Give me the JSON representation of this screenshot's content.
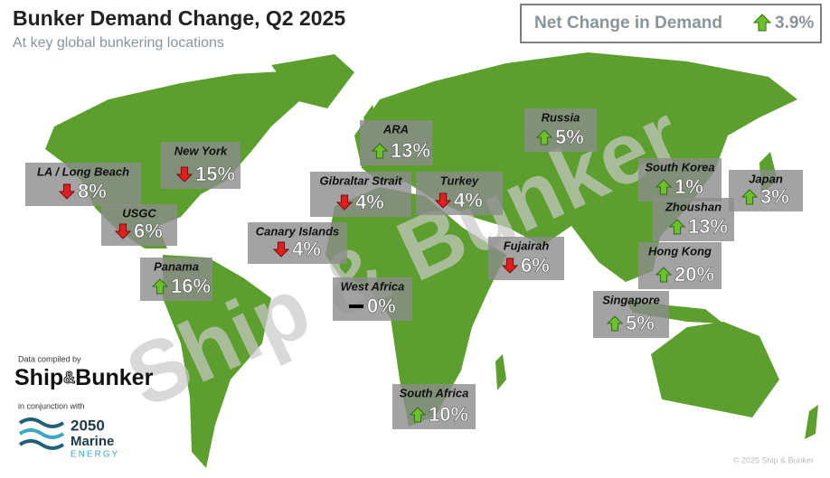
{
  "header": {
    "title": "Bunker Demand Change, Q2 2025",
    "subtitle": "At key global bunkering locations"
  },
  "net_change": {
    "label": "Net Change in Demand",
    "direction": "up",
    "value": "3.9%"
  },
  "watermark": "Ship & Bunker",
  "locations": [
    {
      "name": "LA / Long Beach",
      "direction": "down",
      "value": "8%"
    },
    {
      "name": "New York",
      "direction": "down",
      "value": "15%"
    },
    {
      "name": "USGC",
      "direction": "down",
      "value": "6%"
    },
    {
      "name": "Panama",
      "direction": "up",
      "value": "16%"
    },
    {
      "name": "Canary Islands",
      "direction": "down",
      "value": "4%"
    },
    {
      "name": "Gibraltar Strait",
      "direction": "down",
      "value": "4%"
    },
    {
      "name": "ARA",
      "direction": "up",
      "value": "13%"
    },
    {
      "name": "Turkey",
      "direction": "down",
      "value": "4%"
    },
    {
      "name": "West Africa",
      "direction": "flat",
      "value": "0%"
    },
    {
      "name": "Fujairah",
      "direction": "down",
      "value": "6%"
    },
    {
      "name": "Russia",
      "direction": "up",
      "value": "5%"
    },
    {
      "name": "South Korea",
      "direction": "up",
      "value": "1%"
    },
    {
      "name": "Japan",
      "direction": "up",
      "value": "3%"
    },
    {
      "name": "Zhoushan",
      "direction": "up",
      "value": "13%"
    },
    {
      "name": "Hong Kong",
      "direction": "up",
      "value": "20%"
    },
    {
      "name": "Singapore",
      "direction": "up",
      "value": "5%"
    },
    {
      "name": "South Africa",
      "direction": "up",
      "value": "10%"
    }
  ],
  "footer": {
    "compiled_by": "Data compiled by",
    "logo_left": "Ship",
    "logo_amp": "&",
    "logo_right": "Bunker",
    "conjunction": "in conjunction with",
    "partner_line1": "2050",
    "partner_line2": "Marine",
    "partner_line3": "ENERGY",
    "copyright": "© 2025 Ship & Bunker"
  }
}
